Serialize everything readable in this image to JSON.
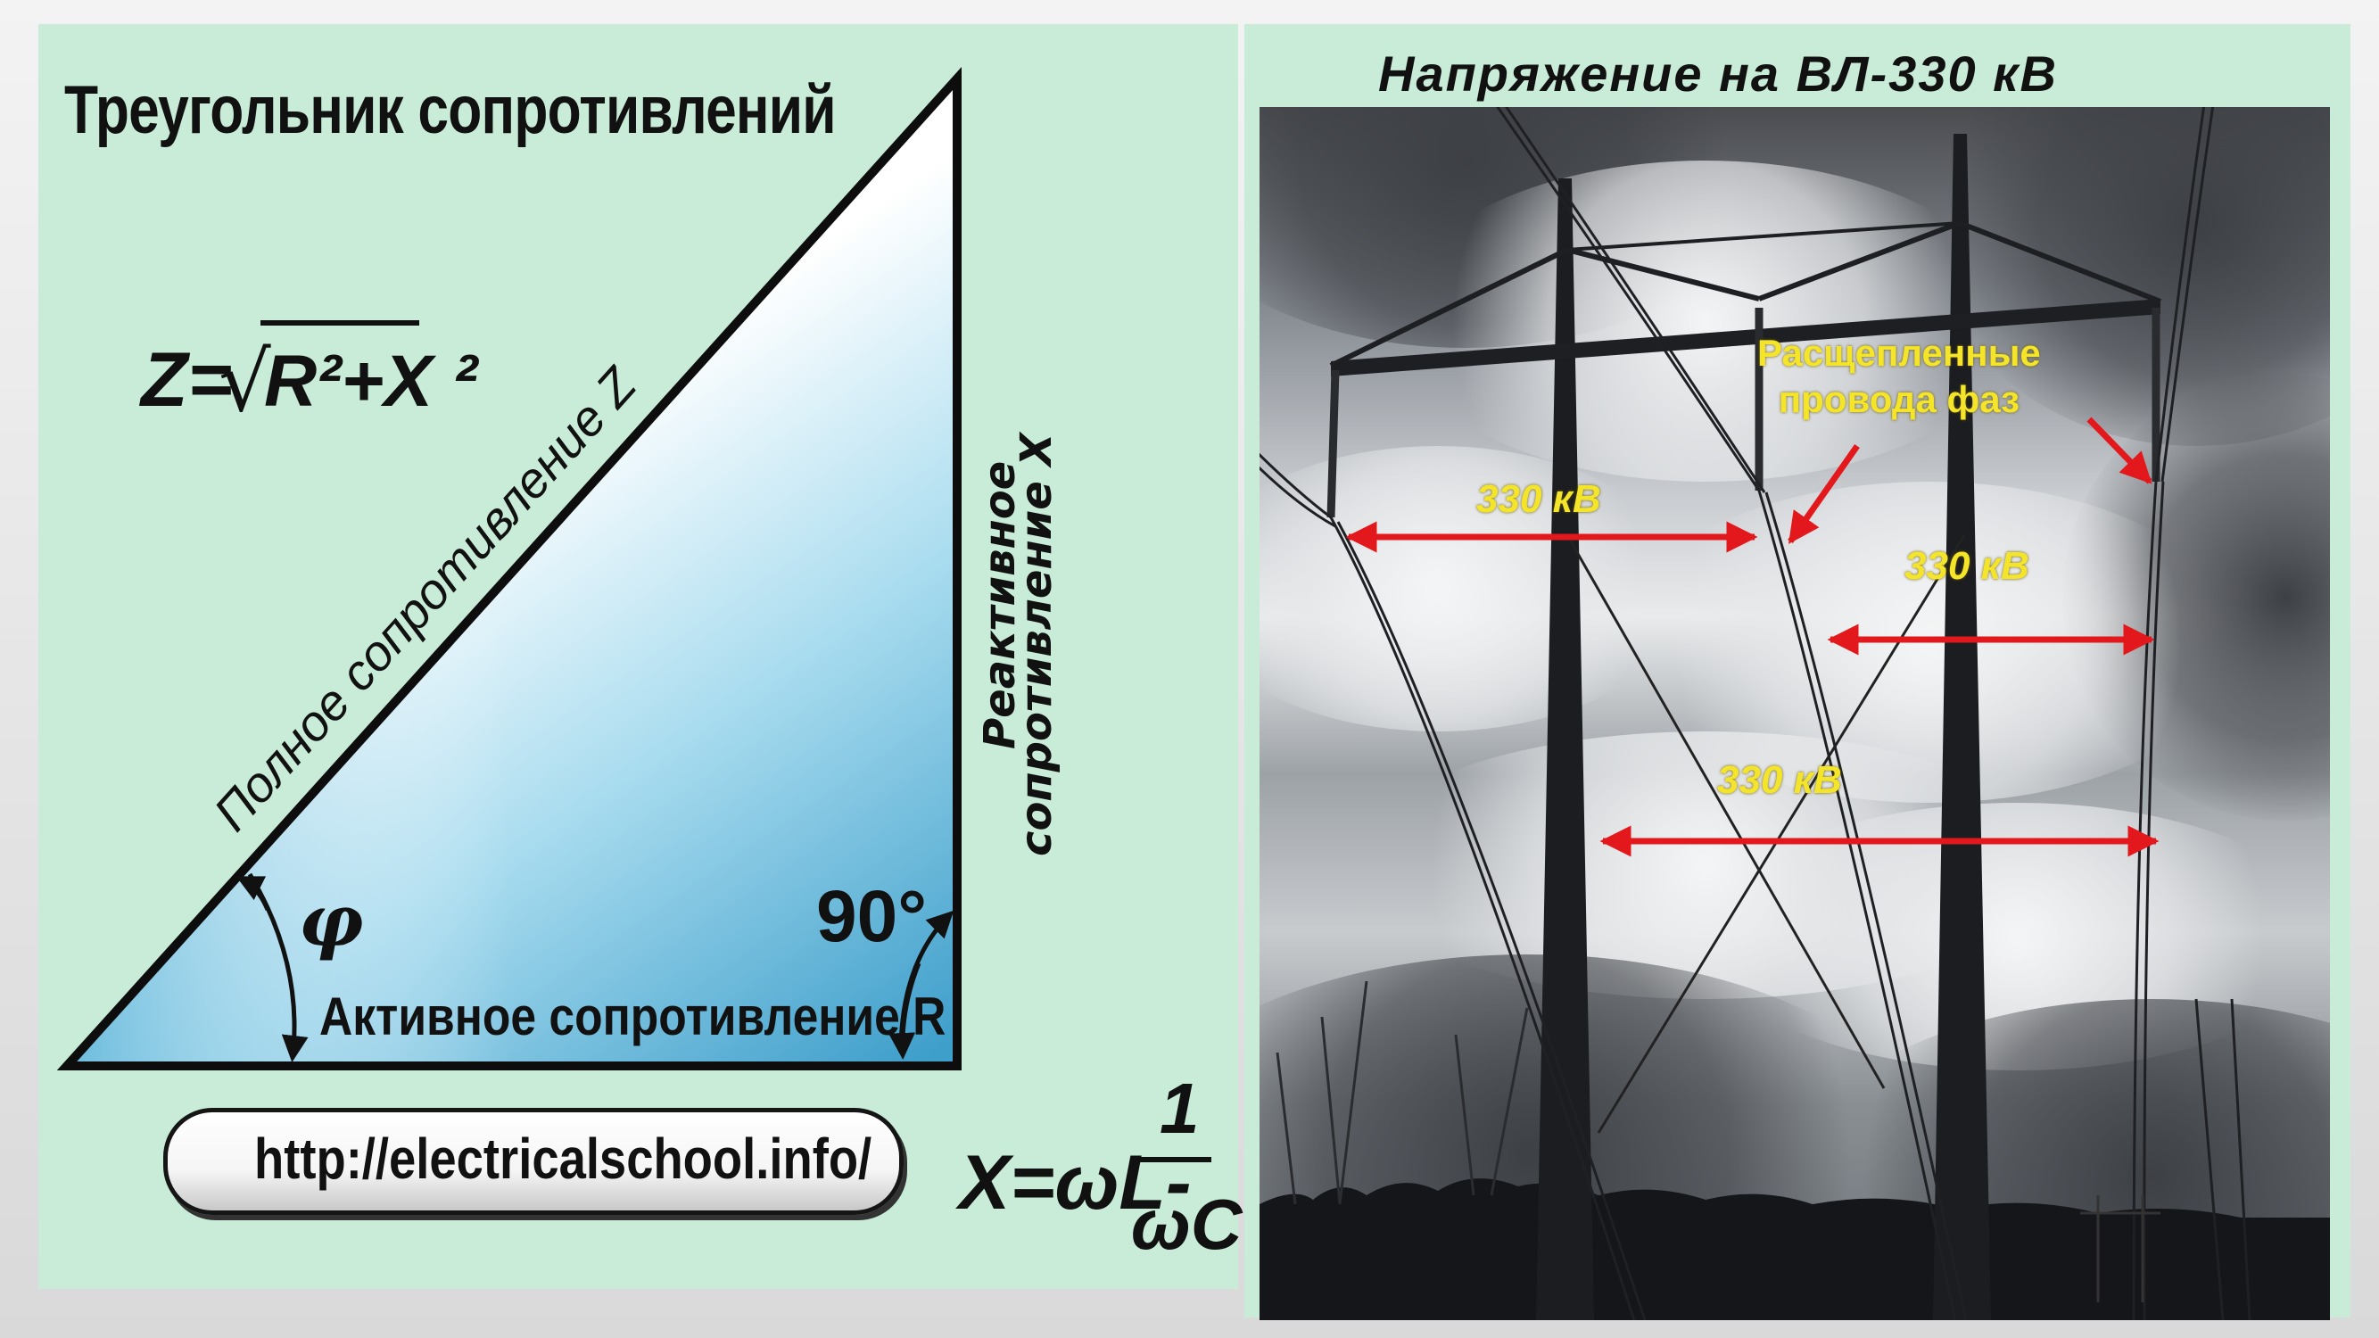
{
  "diagram": {
    "title": "Треугольник сопротивлений",
    "formula_z": {
      "lhs": "Z=",
      "sqrt": "√",
      "radicand": "R²+X ²"
    },
    "hypotenuse_label": "Полное сопротивление Z",
    "vertical_label_line1": "Реактивное",
    "vertical_label_line2": "сопротивление X",
    "base_label": "Активное сопротивление R",
    "angle_phi": "φ",
    "angle_right": "90°",
    "url": "http://electricalschool.info/",
    "formula_x": {
      "lhs": "X=ωL-",
      "numerator": "1",
      "denominator": "ωC"
    }
  },
  "photo": {
    "title": "Напряжение на ВЛ-330 кВ",
    "split_label_line1": "Расщепленные",
    "split_label_line2": "провода фаз",
    "voltage_labels": [
      "330 кВ",
      "330 кВ",
      "330 кВ"
    ]
  },
  "colors": {
    "panel_bg": "#c8ecd7",
    "triangle_light": "#ffffff",
    "triangle_dark": "#4eaed6",
    "arrow_red": "#e3181c",
    "label_yellow": "#f4e52a"
  }
}
